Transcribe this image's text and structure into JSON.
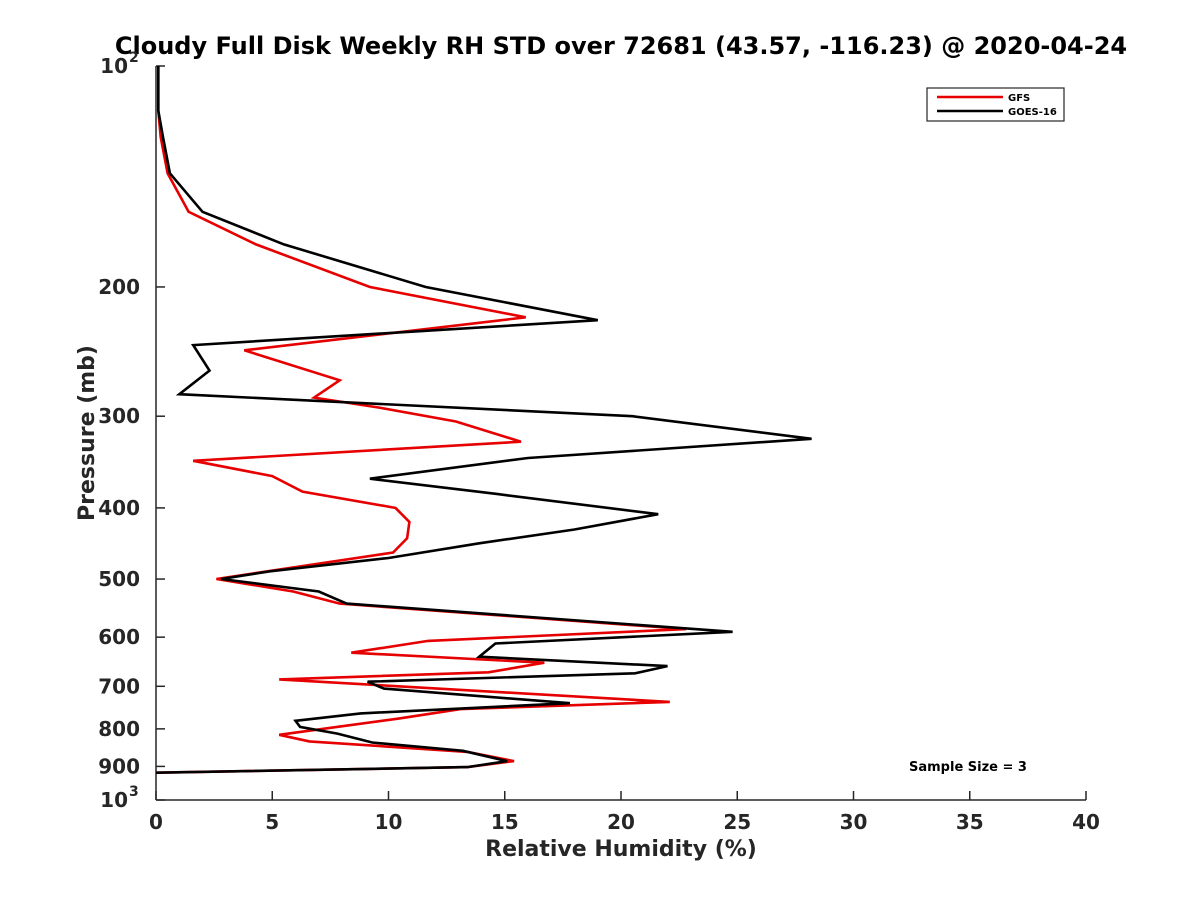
{
  "chart_data": {
    "type": "line",
    "orientation": "profile",
    "title": "Cloudy Full Disk Weekly RH STD over 72681 (43.57, -116.23) @ 2020-04-24",
    "xlabel": "Relative Humidity (%)",
    "ylabel": "Pressure (mb)",
    "xlim": [
      0,
      40
    ],
    "ylim": [
      100,
      1000
    ],
    "yscale": "log",
    "y_reversed": true,
    "grid": false,
    "legend_position": "top-right",
    "x_ticks": [
      "0",
      "5",
      "10",
      "15",
      "20",
      "25",
      "30",
      "35",
      "40"
    ],
    "y_ticks": [
      {
        "value": 100,
        "base": "10",
        "exp": "2"
      },
      {
        "value": 200,
        "label": "200"
      },
      {
        "value": 300,
        "label": "300"
      },
      {
        "value": 400,
        "label": "400"
      },
      {
        "value": 500,
        "label": "500"
      },
      {
        "value": 600,
        "label": "600"
      },
      {
        "value": 700,
        "label": "700"
      },
      {
        "value": 800,
        "label": "800"
      },
      {
        "value": 900,
        "label": "900"
      },
      {
        "value": 1000,
        "base": "10",
        "exp": "3"
      }
    ],
    "annotation": "Sample Size = 3",
    "series": [
      {
        "name": "GFS",
        "color": "#e60000",
        "points": [
          [
            0.1,
            100
          ],
          [
            0.1,
            115
          ],
          [
            0.2,
            125
          ],
          [
            0.5,
            140
          ],
          [
            1.4,
            158
          ],
          [
            4.3,
            175
          ],
          [
            9.2,
            200
          ],
          [
            15.9,
            220
          ],
          [
            3.8,
            244
          ],
          [
            7.9,
            268
          ],
          [
            6.8,
            283
          ],
          [
            9.6,
            292
          ],
          [
            12.9,
            305
          ],
          [
            15.7,
            325
          ],
          [
            1.6,
            345
          ],
          [
            5.0,
            362
          ],
          [
            6.3,
            380
          ],
          [
            10.3,
            400
          ],
          [
            10.9,
            418
          ],
          [
            10.8,
            440
          ],
          [
            10.2,
            460
          ],
          [
            2.6,
            500
          ],
          [
            5.9,
            520
          ],
          [
            7.9,
            540
          ],
          [
            22.8,
            585
          ],
          [
            11.7,
            607
          ],
          [
            8.4,
            630
          ],
          [
            16.7,
            650
          ],
          [
            14.3,
            670
          ],
          [
            5.3,
            685
          ],
          [
            22.1,
            735
          ],
          [
            13.1,
            752
          ],
          [
            10.4,
            775
          ],
          [
            5.3,
            815
          ],
          [
            6.6,
            832
          ],
          [
            13.4,
            860
          ],
          [
            15.4,
            885
          ],
          [
            13.4,
            902
          ],
          [
            0.0,
            918
          ]
        ]
      },
      {
        "name": "GOES-16",
        "color": "#000000",
        "points": [
          [
            0.1,
            100
          ],
          [
            0.1,
            115
          ],
          [
            0.3,
            125
          ],
          [
            0.6,
            140
          ],
          [
            2.0,
            158
          ],
          [
            5.5,
            175
          ],
          [
            11.6,
            200
          ],
          [
            19.0,
            222
          ],
          [
            1.6,
            240
          ],
          [
            2.3,
            260
          ],
          [
            1.0,
            280
          ],
          [
            20.5,
            300
          ],
          [
            28.2,
            322
          ],
          [
            16.0,
            342
          ],
          [
            9.2,
            365
          ],
          [
            14.7,
            383
          ],
          [
            21.6,
            408
          ],
          [
            18.0,
            428
          ],
          [
            13.9,
            447
          ],
          [
            10.0,
            468
          ],
          [
            4.9,
            488
          ],
          [
            2.8,
            500
          ],
          [
            7.0,
            520
          ],
          [
            8.2,
            540
          ],
          [
            24.8,
            590
          ],
          [
            14.6,
            612
          ],
          [
            13.9,
            638
          ],
          [
            22.0,
            657
          ],
          [
            20.6,
            672
          ],
          [
            9.1,
            690
          ],
          [
            9.8,
            705
          ],
          [
            17.8,
            738
          ],
          [
            8.8,
            762
          ],
          [
            6.0,
            780
          ],
          [
            6.2,
            795
          ],
          [
            7.8,
            812
          ],
          [
            9.3,
            835
          ],
          [
            13.2,
            857
          ],
          [
            15.1,
            885
          ],
          [
            13.4,
            902
          ],
          [
            0.0,
            918
          ]
        ]
      }
    ]
  }
}
